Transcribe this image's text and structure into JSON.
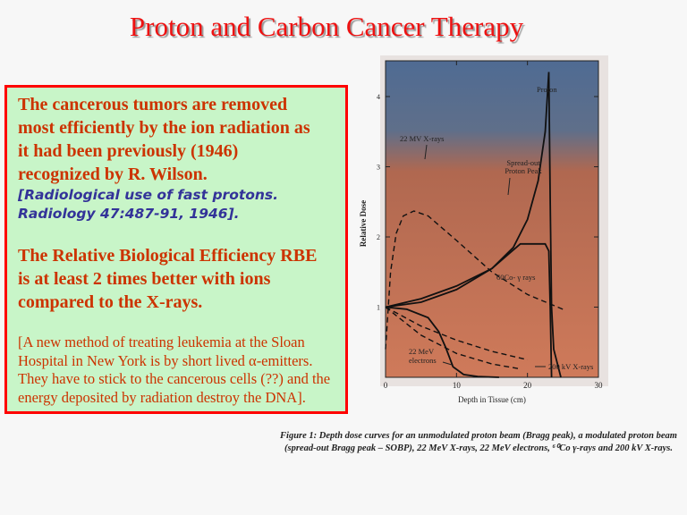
{
  "slide": {
    "title": "Proton and Carbon Cancer Therapy",
    "paragraph1": [
      "The cancerous tumors are removed",
      "most efficiently by the ion radiation as",
      "it had been previously (1946)",
      "recognized by R. Wilson."
    ],
    "reference": [
      "[Radiological use of fast protons.",
      "Radiology 47:487-91, 1946]."
    ],
    "paragraph2": [
      "The Relative Biological Efficiency RBE",
      "is at least 2 times better with ions",
      "compared to the X-rays."
    ],
    "paragraph3": [
      "[A new method of treating leukemia at the Sloan",
      "Hospital in New York is by short lived α-emitters.",
      "They have to stick to the cancerous cells (??) and the",
      "energy deposited by radiation destroy the DNA]."
    ],
    "caption": [
      "Figure 1: Depth dose curves for an unmodulated proton beam (Bragg peak), a modulated proton beam",
      "(spread-out Bragg peak – SOBP), 22 MeV X-rays, 22 MeV electrons, ⁶⁰Co γ-rays and 200 kV X-rays."
    ],
    "colors": {
      "title": "#ee1111",
      "box_border": "#ff0000",
      "box_bg": "#c8f5c8",
      "text": "#cc3300",
      "reference": "#333399",
      "plot_top": "#4f6b93",
      "plot_bottom": "#c8704f"
    }
  },
  "chart_data": {
    "type": "line",
    "xlabel": "Depth in Tissue (cm)",
    "ylabel": "Relative Dose",
    "xlim": [
      0,
      30
    ],
    "ylim": [
      0,
      4.5
    ],
    "xticks": [
      "0",
      "10",
      "20",
      "30"
    ],
    "yticks": [
      "1",
      "2",
      "3",
      "4"
    ],
    "grid": false,
    "series": [
      {
        "name": "Proton",
        "style": "solid",
        "points": [
          [
            0,
            1
          ],
          [
            5,
            1.07
          ],
          [
            10,
            1.25
          ],
          [
            15,
            1.55
          ],
          [
            18,
            1.85
          ],
          [
            20,
            2.25
          ],
          [
            21.5,
            2.8
          ],
          [
            22.5,
            3.5
          ],
          [
            23,
            4.35
          ],
          [
            23.2,
            2.5
          ],
          [
            23.4,
            1.0
          ],
          [
            23.7,
            0.4
          ],
          [
            24.7,
            0
          ]
        ]
      },
      {
        "name": "Spread-out Proton Peak",
        "style": "solid",
        "points": [
          [
            0,
            1
          ],
          [
            5,
            1.12
          ],
          [
            10,
            1.3
          ],
          [
            15,
            1.55
          ],
          [
            17.5,
            1.77
          ],
          [
            19,
            1.9
          ],
          [
            22.5,
            1.9
          ],
          [
            23,
            1.8
          ],
          [
            23.2,
            1.0
          ],
          [
            23.4,
            0
          ]
        ]
      },
      {
        "name": "22 MV X-rays",
        "style": "dashed",
        "points": [
          [
            0,
            0.4
          ],
          [
            0.7,
            1.5
          ],
          [
            1.5,
            2.05
          ],
          [
            2.5,
            2.3
          ],
          [
            4,
            2.37
          ],
          [
            6,
            2.3
          ],
          [
            10,
            1.95
          ],
          [
            15,
            1.5
          ],
          [
            20,
            1.18
          ],
          [
            25,
            0.97
          ]
        ]
      },
      {
        "name": "60Co- γ rays",
        "style": "dashed",
        "points": [
          [
            0,
            1
          ],
          [
            5,
            0.73
          ],
          [
            10,
            0.53
          ],
          [
            15,
            0.37
          ],
          [
            20,
            0.25
          ]
        ]
      },
      {
        "name": "200 kV X-rays",
        "style": "dashed",
        "points": [
          [
            0,
            1
          ],
          [
            5,
            0.6
          ],
          [
            10,
            0.34
          ],
          [
            15,
            0.19
          ],
          [
            19,
            0.12
          ]
        ]
      },
      {
        "name": "22 MeV electrons",
        "style": "solid",
        "points": [
          [
            0,
            1
          ],
          [
            3,
            0.97
          ],
          [
            6,
            0.85
          ],
          [
            7.5,
            0.65
          ],
          [
            8.5,
            0.42
          ],
          [
            9.5,
            0.15
          ],
          [
            11,
            0.04
          ],
          [
            13,
            0.01
          ],
          [
            16,
            0
          ]
        ]
      }
    ],
    "labels": [
      "Proton",
      "22 MV X-rays",
      "Spread-out",
      "Proton Peak",
      "60Co- γ rays",
      "22 MeV",
      "electrons",
      "200 kV X-rays"
    ]
  }
}
